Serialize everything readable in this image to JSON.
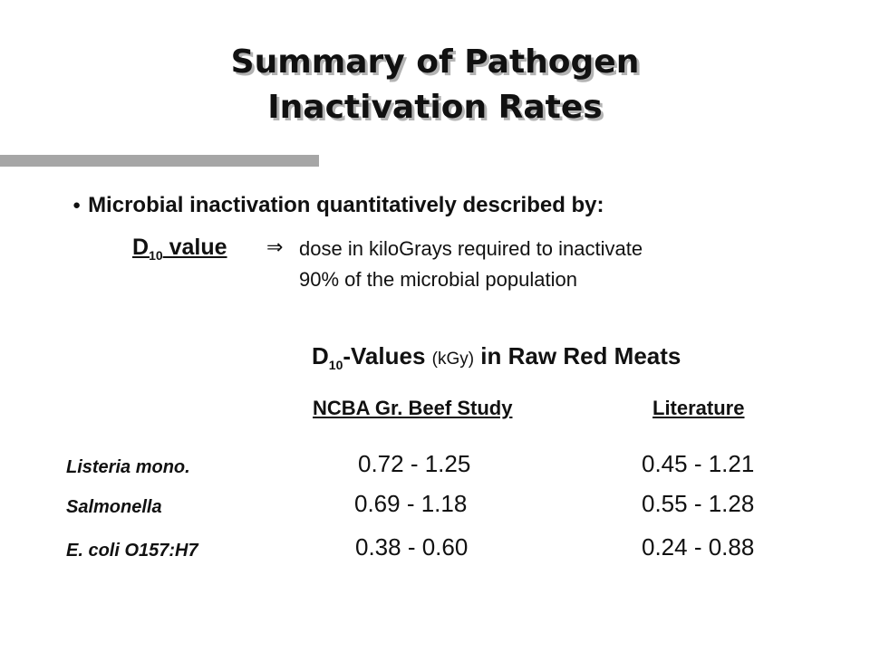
{
  "slide": {
    "title_line1": "Summary of Pathogen",
    "title_line2": "Inactivation Rates",
    "bullet": "Microbial inactivation quantitatively described by:",
    "definition": {
      "term": "D",
      "term_subscript": "10",
      "term_suffix": " value",
      "arrow": "⇒",
      "line1": "dose in kiloGrays required to inactivate",
      "line2": "90% of the microbial population"
    },
    "table": {
      "title_main": "D",
      "title_subscript": "10",
      "title_after_sub": "-Values ",
      "title_unit": "(kGy)",
      "title_rest": " in Raw Red Meats",
      "headers": [
        "NCBA Gr. Beef Study",
        "Literature"
      ],
      "rows": [
        {
          "organism": "Listeria mono.",
          "ncba": "0.72 - 1.25",
          "literature": "0.45 - 1.21"
        },
        {
          "organism": "Salmonella",
          "ncba": "0.69 - 1.18",
          "literature": "0.55 - 1.28"
        },
        {
          "organism": "E. coli O157:H7",
          "ncba": "0.38 - 0.60",
          "literature": "0.24 - 0.88"
        }
      ]
    }
  },
  "colors": {
    "text": "#111111",
    "title_shadow": "#b3b3b3",
    "accent_bar": "#a6a6a6",
    "background": "#ffffff"
  }
}
